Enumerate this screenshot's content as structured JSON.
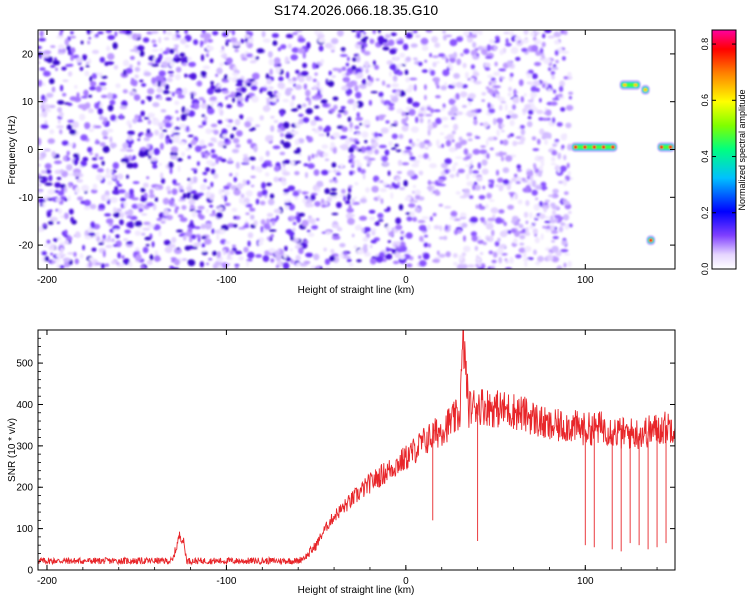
{
  "figure_title": "S174.2026.066.18.35.G10",
  "chart_data": [
    {
      "type": "heatmap",
      "title": "S174.2026.066.18.35.G10",
      "xlabel": "Height of straight line (km)",
      "ylabel": "Frequency (Hz)",
      "xlim": [
        -205,
        150
      ],
      "ylim": [
        -25,
        25
      ],
      "xticks": [
        -200,
        -100,
        0,
        100
      ],
      "yticks": [
        20,
        10,
        0,
        -10,
        -20
      ],
      "noise_region_x": [
        -205,
        92
      ],
      "noise_region_y": [
        -25,
        25
      ],
      "signal_segments": [
        {
          "x": [
            92,
            118
          ],
          "y": 0.5,
          "peak_amplitude": 0.85
        },
        {
          "x": [
            119,
            131
          ],
          "y": 13.5,
          "peak_amplitude": 0.5
        },
        {
          "x": [
            131,
            136
          ],
          "y": 12.5,
          "peak_amplitude": 0.55
        },
        {
          "x": [
            134,
            139
          ],
          "y": -19,
          "peak_amplitude": 0.85
        },
        {
          "x": [
            140,
            150
          ],
          "y": 0.5,
          "peak_amplitude": 0.8
        }
      ],
      "colorbar": {
        "label": "Normalized spectral amplitude",
        "range": [
          0,
          0.85
        ],
        "ticks": [
          "0.0",
          "0.2",
          "0.4",
          "0.6",
          "0.8"
        ],
        "colormap": [
          "#ffffff",
          "#e6d6ff",
          "#8040ff",
          "#0000ff",
          "#00c0ff",
          "#00ff80",
          "#80ff00",
          "#ffff00",
          "#ff8000",
          "#ff0000",
          "#ff00a0"
        ]
      },
      "grid": false
    },
    {
      "type": "line",
      "xlabel": "Height of straight line (km)",
      "ylabel": "SNR (10 * v/v)",
      "xlim": [
        -205,
        150
      ],
      "ylim": [
        0,
        580
      ],
      "xticks": [
        -200,
        -100,
        0,
        100
      ],
      "yticks": [
        0,
        100,
        200,
        300,
        400,
        500
      ],
      "color": "#e8262a",
      "series": [
        {
          "x": [
            -205,
            -180,
            -150,
            -130,
            -126,
            -124,
            -122,
            -118,
            -100,
            -80,
            -60,
            -55,
            -50,
            -45,
            -40,
            -30,
            -20,
            -10,
            0,
            10,
            20,
            30,
            32,
            35,
            40,
            50,
            60,
            70,
            80,
            90,
            100,
            110,
            120,
            130,
            140,
            150
          ],
          "values": [
            22,
            22,
            22,
            22,
            85,
            70,
            22,
            22,
            22,
            22,
            22,
            35,
            60,
            100,
            130,
            170,
            210,
            240,
            270,
            310,
            340,
            375,
            560,
            390,
            400,
            390,
            385,
            370,
            345,
            350,
            340,
            345,
            330,
            330,
            340,
            350
          ]
        }
      ],
      "dropouts": [
        {
          "x": 15,
          "y": 120
        },
        {
          "x": 40,
          "y": 70
        },
        {
          "x": 100,
          "y": 60
        },
        {
          "x": 105,
          "y": 55
        },
        {
          "x": 115,
          "y": 50
        },
        {
          "x": 120,
          "y": 45
        },
        {
          "x": 125,
          "y": 65
        },
        {
          "x": 130,
          "y": 60
        },
        {
          "x": 135,
          "y": 50
        },
        {
          "x": 140,
          "y": 55
        },
        {
          "x": 145,
          "y": 65
        }
      ],
      "grid": false
    }
  ]
}
